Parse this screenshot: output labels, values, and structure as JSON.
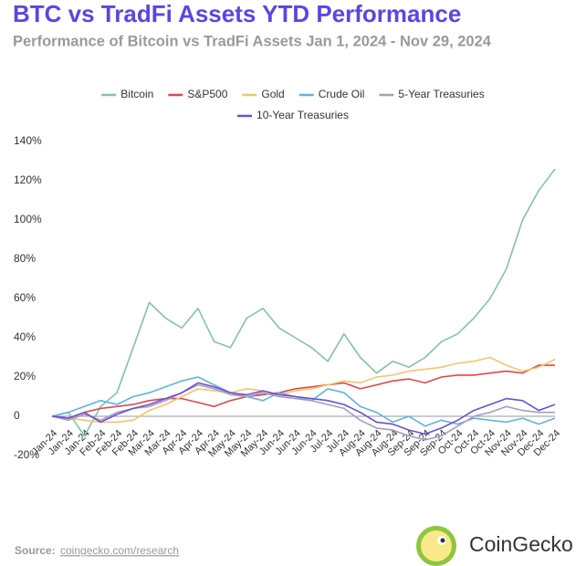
{
  "chart_data": {
    "type": "line",
    "title": "BTC vs TradFi Assets YTD Performance",
    "subtitle": "Performance of Bitcoin vs TradFi Assets Jan 1, 2024 - Nov 29, 2024",
    "categories": [
      "Jan-24",
      "Jan-24",
      "Jan-24",
      "Feb-24",
      "Feb-24",
      "Feb-24",
      "Mar-24",
      "Mar-24",
      "Apr-24",
      "Apr-24",
      "Apr-24",
      "May-24",
      "May-24",
      "May-24",
      "Jun-24",
      "Jun-24",
      "Jun-24",
      "Jul-24",
      "Jul-24",
      "Aug-24",
      "Aug-24",
      "Aug-24",
      "Sep-24",
      "Sep-24",
      "Sep-24",
      "Oct-24",
      "Oct-24",
      "Oct-24",
      "Nov-24",
      "Nov-24",
      "Dec-24",
      "Dec-24"
    ],
    "series": [
      {
        "name": "Bitcoin",
        "color": "#82c4a2",
        "values": [
          0,
          2,
          -10,
          5,
          12,
          35,
          58,
          50,
          45,
          55,
          38,
          35,
          50,
          55,
          45,
          40,
          35,
          28,
          42,
          30,
          22,
          28,
          25,
          30,
          38,
          42,
          50,
          60,
          75,
          100,
          115,
          126
        ]
      },
      {
        "name": "S&P500",
        "color": "#e0474c",
        "values": [
          0,
          -1,
          2,
          4,
          5,
          6,
          8,
          9,
          9,
          7,
          5,
          8,
          10,
          11,
          12,
          14,
          15,
          16,
          17,
          14,
          16,
          18,
          19,
          17,
          20,
          21,
          21,
          22,
          23,
          22,
          26,
          26
        ]
      },
      {
        "name": "Gold",
        "color": "#f6c46a",
        "values": [
          0,
          -1,
          -2,
          -3,
          -3,
          -2,
          3,
          6,
          10,
          14,
          13,
          12,
          14,
          13,
          11,
          13,
          14,
          16,
          18,
          17,
          20,
          21,
          23,
          24,
          25,
          27,
          28,
          30,
          26,
          23,
          25,
          29
        ]
      },
      {
        "name": "Crude Oil",
        "color": "#5db2ea",
        "values": [
          0,
          2,
          5,
          8,
          6,
          10,
          12,
          15,
          18,
          20,
          16,
          12,
          10,
          8,
          12,
          10,
          8,
          14,
          12,
          5,
          2,
          -3,
          0,
          -5,
          -2,
          -4,
          -1,
          -2,
          -3,
          -1,
          -4,
          -1
        ]
      },
      {
        "name": "5-Year Treasuries",
        "color": "#a99bbb",
        "values": [
          0,
          -2,
          1,
          -2,
          2,
          4,
          5,
          8,
          12,
          16,
          14,
          11,
          10,
          12,
          10,
          9,
          8,
          6,
          4,
          -2,
          -6,
          -7,
          -10,
          -12,
          -10,
          -5,
          0,
          2,
          5,
          3,
          2,
          2
        ]
      },
      {
        "name": "10-Year Treasuries",
        "color": "#6a4fd8",
        "values": [
          0,
          -1,
          2,
          -3,
          1,
          4,
          6,
          9,
          12,
          17,
          15,
          12,
          11,
          13,
          11,
          10,
          9,
          8,
          6,
          2,
          -3,
          -4,
          -7,
          -9,
          -6,
          -2,
          3,
          6,
          9,
          8,
          3,
          6
        ]
      }
    ],
    "ylim": [
      -20,
      140
    ],
    "yticks": [
      {
        "value": -20,
        "label": "-20%"
      },
      0,
      {
        "value": 20,
        "label": "20%"
      },
      {
        "value": 40,
        "label": "40%"
      },
      {
        "value": 60,
        "label": "60%"
      },
      {
        "value": 80,
        "label": "80%"
      },
      {
        "value": 100,
        "label": "100%"
      },
      {
        "value": 120,
        "label": "120%"
      },
      {
        "value": 140,
        "label": "140%"
      }
    ],
    "grid": false,
    "legend": "top"
  },
  "footer": {
    "source_label": "Source:",
    "source_link": "coingecko.com/research",
    "brand": "CoinGecko"
  }
}
